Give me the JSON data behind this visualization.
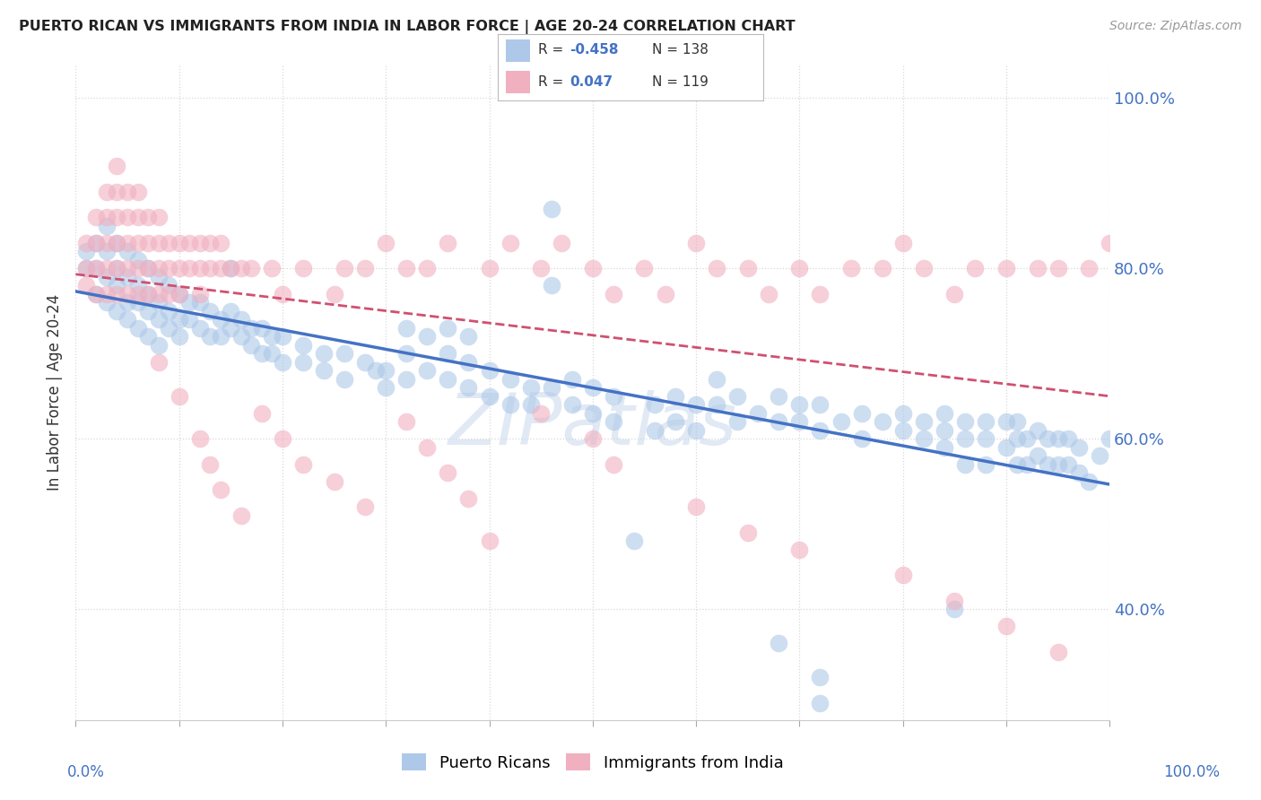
{
  "title": "PUERTO RICAN VS IMMIGRANTS FROM INDIA IN LABOR FORCE | AGE 20-24 CORRELATION CHART",
  "source": "Source: ZipAtlas.com",
  "ylabel": "In Labor Force | Age 20-24",
  "legend_bottom": [
    "Puerto Ricans",
    "Immigrants from India"
  ],
  "blue_R": "-0.458",
  "blue_N": "138",
  "pink_R": "0.047",
  "pink_N": "119",
  "blue_color": "#adc8e8",
  "pink_color": "#f0b0c0",
  "blue_line_color": "#4472c4",
  "pink_line_color": "#d05070",
  "watermark": "ZIPatlas",
  "blue_scatter": [
    [
      0.01,
      0.82
    ],
    [
      0.01,
      0.8
    ],
    [
      0.02,
      0.83
    ],
    [
      0.02,
      0.8
    ],
    [
      0.02,
      0.77
    ],
    [
      0.03,
      0.85
    ],
    [
      0.03,
      0.82
    ],
    [
      0.03,
      0.79
    ],
    [
      0.03,
      0.76
    ],
    [
      0.04,
      0.83
    ],
    [
      0.04,
      0.8
    ],
    [
      0.04,
      0.78
    ],
    [
      0.04,
      0.75
    ],
    [
      0.05,
      0.82
    ],
    [
      0.05,
      0.79
    ],
    [
      0.05,
      0.76
    ],
    [
      0.05,
      0.74
    ],
    [
      0.06,
      0.81
    ],
    [
      0.06,
      0.78
    ],
    [
      0.06,
      0.76
    ],
    [
      0.06,
      0.73
    ],
    [
      0.07,
      0.8
    ],
    [
      0.07,
      0.77
    ],
    [
      0.07,
      0.75
    ],
    [
      0.07,
      0.72
    ],
    [
      0.08,
      0.79
    ],
    [
      0.08,
      0.76
    ],
    [
      0.08,
      0.74
    ],
    [
      0.08,
      0.71
    ],
    [
      0.09,
      0.78
    ],
    [
      0.09,
      0.75
    ],
    [
      0.09,
      0.73
    ],
    [
      0.1,
      0.77
    ],
    [
      0.1,
      0.74
    ],
    [
      0.1,
      0.72
    ],
    [
      0.11,
      0.76
    ],
    [
      0.11,
      0.74
    ],
    [
      0.12,
      0.76
    ],
    [
      0.12,
      0.73
    ],
    [
      0.13,
      0.75
    ],
    [
      0.13,
      0.72
    ],
    [
      0.14,
      0.74
    ],
    [
      0.14,
      0.72
    ],
    [
      0.15,
      0.8
    ],
    [
      0.15,
      0.75
    ],
    [
      0.15,
      0.73
    ],
    [
      0.16,
      0.74
    ],
    [
      0.16,
      0.72
    ],
    [
      0.17,
      0.73
    ],
    [
      0.17,
      0.71
    ],
    [
      0.18,
      0.73
    ],
    [
      0.18,
      0.7
    ],
    [
      0.19,
      0.72
    ],
    [
      0.19,
      0.7
    ],
    [
      0.2,
      0.72
    ],
    [
      0.2,
      0.69
    ],
    [
      0.22,
      0.71
    ],
    [
      0.22,
      0.69
    ],
    [
      0.24,
      0.7
    ],
    [
      0.24,
      0.68
    ],
    [
      0.26,
      0.7
    ],
    [
      0.26,
      0.67
    ],
    [
      0.28,
      0.69
    ],
    [
      0.29,
      0.68
    ],
    [
      0.3,
      0.68
    ],
    [
      0.3,
      0.66
    ],
    [
      0.32,
      0.73
    ],
    [
      0.32,
      0.7
    ],
    [
      0.32,
      0.67
    ],
    [
      0.34,
      0.72
    ],
    [
      0.34,
      0.68
    ],
    [
      0.36,
      0.73
    ],
    [
      0.36,
      0.7
    ],
    [
      0.36,
      0.67
    ],
    [
      0.38,
      0.72
    ],
    [
      0.38,
      0.69
    ],
    [
      0.38,
      0.66
    ],
    [
      0.4,
      0.68
    ],
    [
      0.4,
      0.65
    ],
    [
      0.42,
      0.67
    ],
    [
      0.42,
      0.64
    ],
    [
      0.44,
      0.66
    ],
    [
      0.44,
      0.64
    ],
    [
      0.46,
      0.87
    ],
    [
      0.46,
      0.78
    ],
    [
      0.46,
      0.66
    ],
    [
      0.48,
      0.67
    ],
    [
      0.48,
      0.64
    ],
    [
      0.5,
      0.66
    ],
    [
      0.5,
      0.63
    ],
    [
      0.52,
      0.65
    ],
    [
      0.52,
      0.62
    ],
    [
      0.54,
      0.48
    ],
    [
      0.56,
      0.64
    ],
    [
      0.56,
      0.61
    ],
    [
      0.58,
      0.65
    ],
    [
      0.58,
      0.62
    ],
    [
      0.6,
      0.64
    ],
    [
      0.6,
      0.61
    ],
    [
      0.62,
      0.67
    ],
    [
      0.62,
      0.64
    ],
    [
      0.64,
      0.65
    ],
    [
      0.64,
      0.62
    ],
    [
      0.66,
      0.63
    ],
    [
      0.68,
      0.65
    ],
    [
      0.68,
      0.62
    ],
    [
      0.7,
      0.64
    ],
    [
      0.7,
      0.62
    ],
    [
      0.72,
      0.64
    ],
    [
      0.72,
      0.61
    ],
    [
      0.74,
      0.62
    ],
    [
      0.76,
      0.63
    ],
    [
      0.76,
      0.6
    ],
    [
      0.78,
      0.62
    ],
    [
      0.8,
      0.63
    ],
    [
      0.8,
      0.61
    ],
    [
      0.82,
      0.62
    ],
    [
      0.82,
      0.6
    ],
    [
      0.84,
      0.63
    ],
    [
      0.84,
      0.61
    ],
    [
      0.84,
      0.59
    ],
    [
      0.86,
      0.62
    ],
    [
      0.86,
      0.6
    ],
    [
      0.86,
      0.57
    ],
    [
      0.88,
      0.62
    ],
    [
      0.88,
      0.6
    ],
    [
      0.88,
      0.57
    ],
    [
      0.9,
      0.62
    ],
    [
      0.9,
      0.59
    ],
    [
      0.91,
      0.62
    ],
    [
      0.91,
      0.6
    ],
    [
      0.91,
      0.57
    ],
    [
      0.92,
      0.6
    ],
    [
      0.92,
      0.57
    ],
    [
      0.93,
      0.61
    ],
    [
      0.93,
      0.58
    ],
    [
      0.94,
      0.6
    ],
    [
      0.94,
      0.57
    ],
    [
      0.95,
      0.6
    ],
    [
      0.95,
      0.57
    ],
    [
      0.96,
      0.6
    ],
    [
      0.96,
      0.57
    ],
    [
      0.97,
      0.59
    ],
    [
      0.97,
      0.56
    ],
    [
      0.98,
      0.55
    ],
    [
      0.99,
      0.58
    ],
    [
      1.0,
      0.6
    ],
    [
      0.85,
      0.4
    ],
    [
      0.68,
      0.36
    ],
    [
      0.72,
      0.32
    ],
    [
      0.72,
      0.29
    ]
  ],
  "pink_scatter": [
    [
      0.01,
      0.83
    ],
    [
      0.01,
      0.8
    ],
    [
      0.01,
      0.78
    ],
    [
      0.02,
      0.86
    ],
    [
      0.02,
      0.83
    ],
    [
      0.02,
      0.8
    ],
    [
      0.02,
      0.77
    ],
    [
      0.03,
      0.89
    ],
    [
      0.03,
      0.86
    ],
    [
      0.03,
      0.83
    ],
    [
      0.03,
      0.8
    ],
    [
      0.03,
      0.77
    ],
    [
      0.04,
      0.92
    ],
    [
      0.04,
      0.89
    ],
    [
      0.04,
      0.86
    ],
    [
      0.04,
      0.83
    ],
    [
      0.04,
      0.8
    ],
    [
      0.04,
      0.77
    ],
    [
      0.05,
      0.89
    ],
    [
      0.05,
      0.86
    ],
    [
      0.05,
      0.83
    ],
    [
      0.05,
      0.8
    ],
    [
      0.05,
      0.77
    ],
    [
      0.06,
      0.89
    ],
    [
      0.06,
      0.86
    ],
    [
      0.06,
      0.83
    ],
    [
      0.06,
      0.8
    ],
    [
      0.06,
      0.77
    ],
    [
      0.07,
      0.86
    ],
    [
      0.07,
      0.83
    ],
    [
      0.07,
      0.8
    ],
    [
      0.07,
      0.77
    ],
    [
      0.08,
      0.86
    ],
    [
      0.08,
      0.83
    ],
    [
      0.08,
      0.8
    ],
    [
      0.08,
      0.77
    ],
    [
      0.09,
      0.83
    ],
    [
      0.09,
      0.8
    ],
    [
      0.09,
      0.77
    ],
    [
      0.1,
      0.83
    ],
    [
      0.1,
      0.8
    ],
    [
      0.1,
      0.77
    ],
    [
      0.11,
      0.83
    ],
    [
      0.11,
      0.8
    ],
    [
      0.12,
      0.83
    ],
    [
      0.12,
      0.8
    ],
    [
      0.12,
      0.77
    ],
    [
      0.13,
      0.83
    ],
    [
      0.13,
      0.8
    ],
    [
      0.14,
      0.83
    ],
    [
      0.14,
      0.8
    ],
    [
      0.15,
      0.8
    ],
    [
      0.16,
      0.8
    ],
    [
      0.17,
      0.8
    ],
    [
      0.19,
      0.8
    ],
    [
      0.2,
      0.77
    ],
    [
      0.22,
      0.8
    ],
    [
      0.25,
      0.77
    ],
    [
      0.26,
      0.8
    ],
    [
      0.28,
      0.8
    ],
    [
      0.3,
      0.83
    ],
    [
      0.32,
      0.8
    ],
    [
      0.34,
      0.8
    ],
    [
      0.36,
      0.83
    ],
    [
      0.4,
      0.8
    ],
    [
      0.42,
      0.83
    ],
    [
      0.45,
      0.8
    ],
    [
      0.47,
      0.83
    ],
    [
      0.5,
      0.8
    ],
    [
      0.52,
      0.77
    ],
    [
      0.55,
      0.8
    ],
    [
      0.57,
      0.77
    ],
    [
      0.6,
      0.83
    ],
    [
      0.62,
      0.8
    ],
    [
      0.65,
      0.8
    ],
    [
      0.67,
      0.77
    ],
    [
      0.7,
      0.8
    ],
    [
      0.72,
      0.77
    ],
    [
      0.75,
      0.8
    ],
    [
      0.78,
      0.8
    ],
    [
      0.8,
      0.83
    ],
    [
      0.82,
      0.8
    ],
    [
      0.85,
      0.77
    ],
    [
      0.87,
      0.8
    ],
    [
      0.9,
      0.8
    ],
    [
      0.93,
      0.8
    ],
    [
      0.95,
      0.8
    ],
    [
      0.98,
      0.8
    ],
    [
      1.0,
      0.83
    ],
    [
      0.08,
      0.69
    ],
    [
      0.1,
      0.65
    ],
    [
      0.12,
      0.6
    ],
    [
      0.13,
      0.57
    ],
    [
      0.14,
      0.54
    ],
    [
      0.16,
      0.51
    ],
    [
      0.18,
      0.63
    ],
    [
      0.2,
      0.6
    ],
    [
      0.22,
      0.57
    ],
    [
      0.25,
      0.55
    ],
    [
      0.28,
      0.52
    ],
    [
      0.32,
      0.62
    ],
    [
      0.34,
      0.59
    ],
    [
      0.36,
      0.56
    ],
    [
      0.38,
      0.53
    ],
    [
      0.4,
      0.48
    ],
    [
      0.45,
      0.63
    ],
    [
      0.5,
      0.6
    ],
    [
      0.52,
      0.57
    ],
    [
      0.6,
      0.52
    ],
    [
      0.65,
      0.49
    ],
    [
      0.7,
      0.47
    ],
    [
      0.8,
      0.44
    ],
    [
      0.85,
      0.41
    ],
    [
      0.9,
      0.38
    ],
    [
      0.95,
      0.35
    ]
  ],
  "xlim": [
    0.0,
    1.0
  ],
  "ylim": [
    0.27,
    1.04
  ],
  "yticks": [
    0.4,
    0.6,
    0.8,
    1.0
  ],
  "ytick_labels": [
    "40.0%",
    "60.0%",
    "80.0%",
    "100.0%"
  ],
  "background_color": "#ffffff"
}
